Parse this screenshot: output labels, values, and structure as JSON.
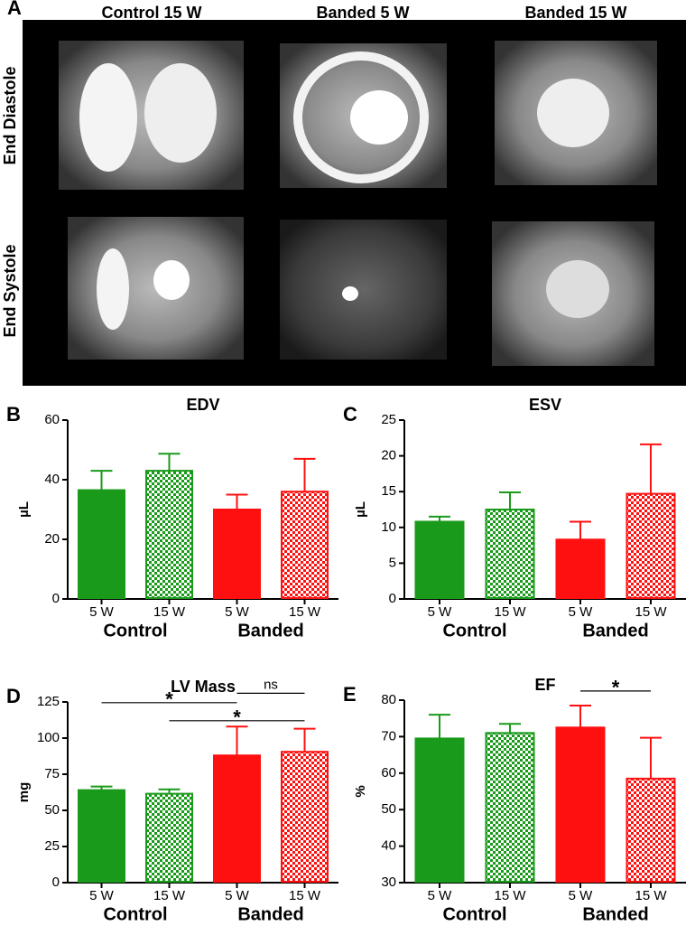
{
  "panel_a": {
    "letter": "A",
    "column_labels": [
      "Control 15 W",
      "Banded 5 W",
      "Banded 15 W"
    ],
    "row_labels": [
      "End Diastole",
      "End Systole"
    ]
  },
  "chart_data": [
    {
      "type": "bar",
      "panel": "B",
      "title": "EDV",
      "ylabel": "µL",
      "categories": [
        "5 W",
        "15 W",
        "5 W",
        "15 W"
      ],
      "groups": [
        "Control",
        "Banded"
      ],
      "values": [
        36.5,
        43,
        30,
        36
      ],
      "errors": [
        6.5,
        5.7,
        5,
        11
      ],
      "colors": [
        "#1a9a1a",
        "#1a9a1a",
        "#ff1010",
        "#ff1010"
      ],
      "patterns": [
        "solid",
        "checker",
        "solid",
        "checker"
      ],
      "ylim": [
        0,
        60
      ],
      "yticks": [
        0,
        20,
        40,
        60
      ],
      "brackets": []
    },
    {
      "type": "bar",
      "panel": "C",
      "title": "ESV",
      "ylabel": "µL",
      "categories": [
        "5 W",
        "15 W",
        "5 W",
        "15 W"
      ],
      "groups": [
        "Control",
        "Banded"
      ],
      "values": [
        10.8,
        12.5,
        8.3,
        14.7
      ],
      "errors": [
        0.7,
        2.4,
        2.5,
        6.9
      ],
      "colors": [
        "#1a9a1a",
        "#1a9a1a",
        "#ff1010",
        "#ff1010"
      ],
      "patterns": [
        "solid",
        "checker",
        "solid",
        "checker"
      ],
      "ylim": [
        0,
        25
      ],
      "yticks": [
        0,
        5,
        10,
        15,
        20,
        25
      ],
      "brackets": []
    },
    {
      "type": "bar",
      "panel": "D",
      "title": "LV Mass",
      "ylabel": "mg",
      "categories": [
        "5 W",
        "15 W",
        "5 W",
        "15 W"
      ],
      "groups": [
        "Control",
        "Banded"
      ],
      "values": [
        64,
        61.5,
        88,
        90.5
      ],
      "errors": [
        2.5,
        3,
        20,
        16
      ],
      "colors": [
        "#1a9a1a",
        "#1a9a1a",
        "#ff1010",
        "#ff1010"
      ],
      "patterns": [
        "solid",
        "checker",
        "solid",
        "checker"
      ],
      "ylim": [
        0,
        125
      ],
      "yticks": [
        0,
        25,
        50,
        75,
        100,
        125
      ],
      "brackets": [
        {
          "from": 0,
          "to": 2,
          "y": 124.5,
          "label": "*"
        },
        {
          "from": 2,
          "to": 3,
          "y": 131,
          "label": "ns"
        },
        {
          "from": 1,
          "to": 3,
          "y": 112,
          "label": "*"
        }
      ]
    },
    {
      "type": "bar",
      "panel": "E",
      "title": "EF",
      "ylabel": "%",
      "categories": [
        "5 W",
        "15 W",
        "5 W",
        "15 W"
      ],
      "groups": [
        "Control",
        "Banded"
      ],
      "values": [
        69.5,
        71,
        72.5,
        58.5
      ],
      "errors": [
        6.5,
        2.5,
        6,
        11.2
      ],
      "colors": [
        "#1a9a1a",
        "#1a9a1a",
        "#ff1010",
        "#ff1010"
      ],
      "patterns": [
        "solid",
        "checker",
        "solid",
        "checker"
      ],
      "ylim": [
        30,
        80
      ],
      "yticks": [
        30,
        40,
        50,
        60,
        70,
        80
      ],
      "brackets": [
        {
          "from": 2,
          "to": 3,
          "y": 82.5,
          "label": "*"
        }
      ]
    }
  ]
}
